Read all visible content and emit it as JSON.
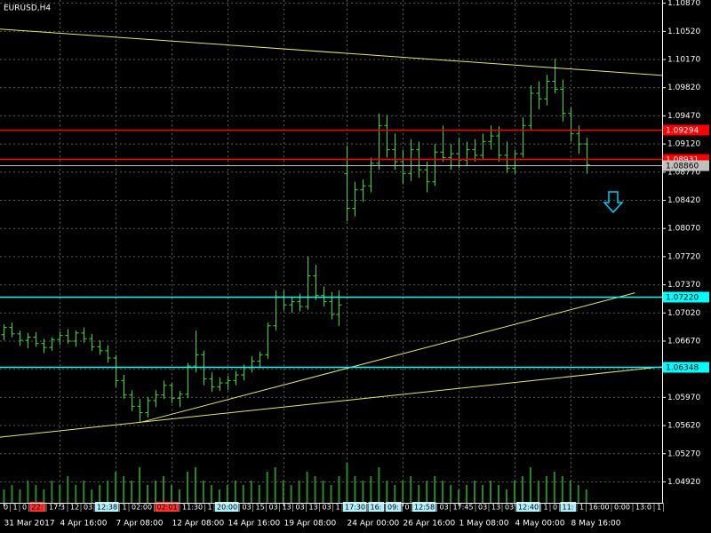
{
  "chart_data": {
    "type": "ohlc",
    "title": "EURUSD,H4",
    "color": "#33dd33",
    "categories": [
      "31 Mar 2017",
      null,
      null,
      null,
      null,
      null,
      null,
      "4 Apr 16:00",
      null,
      null,
      null,
      null,
      null,
      null,
      "7 Apr 08:00",
      null,
      null,
      null,
      null,
      null,
      null,
      "12 Apr 08:00",
      null,
      null,
      null,
      null,
      null,
      null,
      "14 Apr 16:00",
      null,
      null,
      null,
      null,
      null,
      null,
      "19 Apr 08:00",
      null,
      null,
      null,
      null,
      null,
      null,
      null,
      "24 Apr 00:00",
      null,
      null,
      null,
      null,
      null,
      null,
      "26 Apr 16:00",
      null,
      null,
      null,
      null,
      null,
      null,
      "1 May 08:00",
      null,
      null,
      null,
      null,
      null,
      null,
      "4 May 00:00",
      null,
      null,
      null,
      null,
      null,
      null,
      "8 May 16:00",
      null,
      null
    ],
    "open": [
      1.0675,
      1.0684,
      1.0676,
      1.0668,
      1.0672,
      1.0664,
      1.0659,
      1.0669,
      1.0674,
      1.0667,
      1.0677,
      1.067,
      1.066,
      1.0655,
      1.0646,
      1.0618,
      1.06,
      1.0586,
      1.0578,
      1.0593,
      1.06,
      1.0612,
      1.0596,
      1.0601,
      1.0636,
      1.065,
      1.062,
      1.061,
      1.0615,
      1.0618,
      1.0625,
      1.0634,
      1.0642,
      1.065,
      1.0686,
      1.0722,
      1.0712,
      1.0716,
      1.071,
      1.0748,
      1.0724,
      1.0716,
      1.07,
      1.0875,
      1.0832,
      1.0855,
      1.086,
      1.0888,
      1.0935,
      1.0905,
      1.089,
      1.0875,
      1.0905,
      1.088,
      1.0865,
      1.0902,
      1.0895,
      1.09,
      1.0892,
      1.0905,
      1.0898,
      1.0915,
      1.0922,
      1.0898,
      1.0882,
      1.09,
      1.0935,
      1.0975,
      1.0968,
      1.099,
      1.098,
      1.095,
      1.0925,
      1.0912
    ],
    "high": [
      1.0688,
      1.069,
      1.068,
      1.0677,
      1.0678,
      1.067,
      1.0672,
      1.0679,
      1.0682,
      1.068,
      1.0684,
      1.0676,
      1.0668,
      1.0662,
      1.065,
      1.0625,
      1.0606,
      1.0595,
      1.0598,
      1.0606,
      1.0618,
      1.0615,
      1.0605,
      1.064,
      1.068,
      1.0655,
      1.0628,
      1.0622,
      1.0624,
      1.063,
      1.0638,
      1.0648,
      1.0654,
      1.069,
      1.073,
      1.073,
      1.0722,
      1.0726,
      1.0772,
      1.0762,
      1.0735,
      1.0728,
      1.073,
      1.091,
      1.0865,
      1.0868,
      1.0895,
      1.095,
      1.0948,
      1.0925,
      1.0905,
      1.0918,
      1.0915,
      1.089,
      1.0912,
      1.0935,
      1.0912,
      1.092,
      1.0915,
      1.0918,
      1.0925,
      1.0935,
      1.0934,
      1.0915,
      1.0905,
      1.0945,
      1.0985,
      1.099,
      1.0998,
      1.1018,
      1.0992,
      1.0958,
      1.0935,
      1.092
    ],
    "low": [
      1.0668,
      1.0672,
      1.0661,
      1.0658,
      1.066,
      1.0652,
      1.0655,
      1.0662,
      1.0664,
      1.066,
      1.0665,
      1.0655,
      1.065,
      1.064,
      1.061,
      1.0595,
      1.058,
      1.0566,
      1.0572,
      1.0585,
      1.0595,
      1.059,
      1.0585,
      1.0596,
      1.0628,
      1.0612,
      1.0604,
      1.0605,
      1.0606,
      1.0612,
      1.0618,
      1.0628,
      1.0635,
      1.0645,
      1.068,
      1.0705,
      1.0702,
      1.0704,
      1.0706,
      1.0718,
      1.071,
      1.0694,
      1.0686,
      1.0816,
      1.0822,
      1.084,
      1.0852,
      1.088,
      1.0895,
      1.088,
      1.0862,
      1.0866,
      1.087,
      1.0852,
      1.086,
      1.089,
      1.088,
      1.0882,
      1.0885,
      1.089,
      1.0892,
      1.0905,
      1.089,
      1.0876,
      1.0875,
      1.0895,
      1.093,
      1.0955,
      1.096,
      1.0975,
      1.094,
      1.0915,
      1.09,
      1.0875
    ],
    "close": [
      1.0684,
      1.0676,
      1.0668,
      1.0672,
      1.0664,
      1.0659,
      1.0669,
      1.0674,
      1.0667,
      1.0677,
      1.067,
      1.066,
      1.0655,
      1.0646,
      1.0618,
      1.06,
      1.0586,
      1.0578,
      1.0593,
      1.06,
      1.0612,
      1.0596,
      1.0601,
      1.0636,
      1.065,
      1.062,
      1.061,
      1.0615,
      1.0618,
      1.0625,
      1.0634,
      1.0642,
      1.065,
      1.0686,
      1.0722,
      1.0712,
      1.0716,
      1.071,
      1.0748,
      1.0724,
      1.0716,
      1.07,
      1.0712,
      1.0832,
      1.0855,
      1.086,
      1.0888,
      1.0935,
      1.0905,
      1.089,
      1.0875,
      1.0905,
      1.088,
      1.0865,
      1.0902,
      1.0895,
      1.09,
      1.0892,
      1.0905,
      1.0898,
      1.0915,
      1.0922,
      1.0898,
      1.0882,
      1.09,
      1.0935,
      1.0975,
      1.0968,
      1.099,
      1.098,
      1.095,
      1.0925,
      1.0912,
      1.0886
    ],
    "volume": [
      3,
      4,
      3,
      5,
      4,
      3,
      5,
      4,
      6,
      4,
      5,
      3,
      4,
      5,
      7,
      6,
      5,
      8,
      4,
      5,
      6,
      4,
      3,
      7,
      8,
      5,
      4,
      3,
      4,
      5,
      4,
      5,
      4,
      7,
      8,
      5,
      4,
      5,
      7,
      6,
      5,
      4,
      6,
      9,
      6,
      5,
      6,
      8,
      5,
      4,
      5,
      6,
      4,
      5,
      6,
      5,
      4,
      3,
      4,
      5,
      4,
      5,
      4,
      3,
      5,
      6,
      8,
      5,
      6,
      7,
      6,
      5,
      4,
      3
    ],
    "xlim": [
      -0.5,
      82.5
    ],
    "ylim": [
      1.0466,
      1.1091
    ],
    "yticks": [
      {
        "value": 1.0492,
        "label": "1.04920"
      },
      {
        "value": 1.0527,
        "label": "1.05270"
      },
      {
        "value": 1.0562,
        "label": "1.05620"
      },
      {
        "value": 1.0597,
        "label": "1.05970"
      },
      {
        "value": 1.0632,
        "label": "1.06320"
      },
      {
        "value": 1.0667,
        "label": "1.06670"
      },
      {
        "value": 1.0702,
        "label": "1.07020"
      },
      {
        "value": 1.0737,
        "label": "1.07370"
      },
      {
        "value": 1.0772,
        "label": "1.07720"
      },
      {
        "value": 1.0807,
        "label": "1.08070"
      },
      {
        "value": 1.0842,
        "label": "1.08420"
      },
      {
        "value": 1.0877,
        "label": "1.08770"
      },
      {
        "value": 1.0912,
        "label": "1.09120"
      },
      {
        "value": 1.0947,
        "label": "1.09470"
      },
      {
        "value": 1.0982,
        "label": "1.09820"
      },
      {
        "value": 1.1017,
        "label": "1.10170"
      },
      {
        "value": 1.1052,
        "label": "1.10520"
      },
      {
        "value": 1.1087,
        "label": "1.10870"
      }
    ],
    "grid": true,
    "levels": [
      {
        "value": 1.09294,
        "label": "1.09294",
        "color": "#ff0000"
      },
      {
        "value": 1.08931,
        "label": "1.08931",
        "color": "#ff0000"
      },
      {
        "value": 1.0886,
        "label": "1.08860",
        "color": "#c0c0c0"
      },
      {
        "value": 1.0722,
        "label": "1.07220",
        "color": "#00ffff"
      },
      {
        "value": 1.06348,
        "label": "1.06348",
        "color": "#00ffff"
      }
    ],
    "trendlines": [
      {
        "x": [
          -0.5,
          82.5
        ],
        "y": [
          1.10549,
          1.09973
        ],
        "color": "#e6e66e"
      },
      {
        "x": [
          -0.5,
          82.5
        ],
        "y": [
          1.05476,
          1.06351
        ],
        "color": "#e6e66e"
      },
      {
        "x": [
          17.3,
          79.1
        ],
        "y": [
          1.05664,
          1.0727
        ],
        "color": "#e6e66e"
      }
    ],
    "session_labels": [
      {
        "text": "0"
      },
      {
        "text": "1"
      },
      {
        "text": "0"
      },
      {
        "text": "22:",
        "bg": "#ff3030"
      },
      {
        "text": "17:3"
      },
      {
        "text": "12"
      },
      {
        "text": "03"
      },
      {
        "text": "12:38",
        "bg": "#b0f0ff"
      },
      {
        "text": "1"
      },
      {
        "text": "02:00"
      },
      {
        "text": "02:01",
        "bg": "#ff3030"
      },
      {
        "text": "11:30"
      },
      {
        "text": "1"
      },
      {
        "text": "20:00",
        "bg": "#b0f0ff"
      },
      {
        "text": "03"
      },
      {
        "text": "15"
      },
      {
        "text": "03"
      },
      {
        "text": "13"
      },
      {
        "text": "03"
      },
      {
        "text": "13"
      },
      {
        "text": "03"
      },
      {
        "text": "1"
      },
      {
        "text": "17:30",
        "bg": "#b0f0ff"
      },
      {
        "text": "16:",
        "bg": "#b0f0ff"
      },
      {
        "text": "09:",
        "bg": "#b0f0ff"
      },
      {
        "text": "0"
      },
      {
        "text": "12:58",
        "bg": "#b0f0ff"
      },
      {
        "text": "03"
      },
      {
        "text": "17:45"
      },
      {
        "text": "03"
      },
      {
        "text": "13"
      },
      {
        "text": "03"
      },
      {
        "text": "12:40",
        "bg": "#b0f0ff"
      },
      {
        "text": "1"
      },
      {
        "text": "0"
      },
      {
        "text": "11:",
        "bg": "#b0f0ff"
      },
      {
        "text": "1"
      },
      {
        "text": "16:00"
      },
      {
        "text": "0:00"
      },
      {
        "text": "13:0"
      },
      {
        "text": "1"
      }
    ]
  }
}
